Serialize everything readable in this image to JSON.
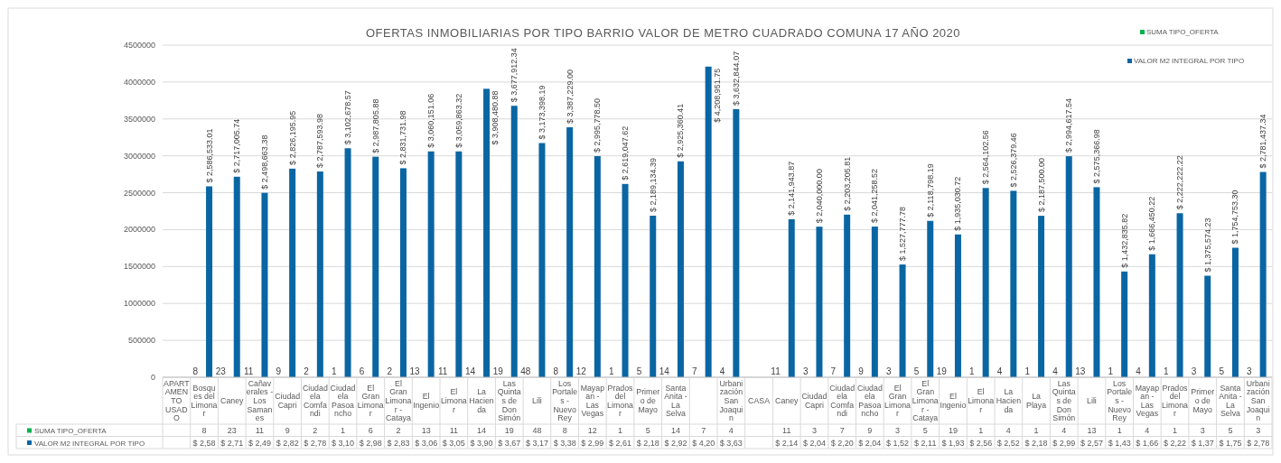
{
  "chart_data": {
    "type": "bar",
    "title": "OFERTAS INMOBILIARIAS  POR TIPO BARRIO VALOR DE METRO CUADRADO COMUNA 17 AÑO 2020",
    "categories": [
      "APARTAMENTO USADO",
      "Bosques del Limonar",
      "Caney",
      "Cañaverales - Los Samanes",
      "Ciudad Capri",
      "Ciudadela Comfandi",
      "Ciudadela Pasoancho",
      "El Gran Limonar",
      "El Gran Limonar - Cataya",
      "El Ingenio",
      "El Limonar",
      "La Hacienda",
      "Las Quintas de Don Simón",
      "Lili",
      "Los Portales - Nuevo Rey",
      "Mayapan - Las Vegas",
      "Prados del Limonar",
      "Primero de Mayo",
      "Santa Anita - La Selva",
      null,
      "Urbanización San Joaquin",
      "CASA",
      "Caney",
      "Ciudad Capri",
      "Ciudadela Comfandi",
      "Ciudadela Pasoancho",
      "El Gran Limonar",
      "El Gran Limonar - Cataya",
      "El Ingenio",
      "El Limonar",
      "La Hacienda",
      "La Playa",
      "Las Quintas de Don Simón",
      "Lili",
      "Los Portales - Nuevo Rey",
      "Mayapan - Las Vegas",
      "Prados del Limonar",
      "Primero de Mayo",
      "Santa Anita - La Selva",
      "Urbanización San Joaquin"
    ],
    "series": [
      {
        "name": "SUMA TIPO_OFERTA",
        "color": "#00b050",
        "values": [
          null,
          8,
          23,
          11,
          9,
          2,
          1,
          6,
          2,
          13,
          11,
          14,
          19,
          48,
          8,
          12,
          1,
          5,
          14,
          7,
          4,
          null,
          11,
          3,
          7,
          9,
          3,
          5,
          19,
          1,
          4,
          1,
          4,
          13,
          1,
          4,
          1,
          3,
          5,
          3
        ],
        "value_labels": [
          null,
          "8",
          "23",
          "11",
          "9",
          "2",
          "1",
          "6",
          "2",
          "13",
          "11",
          "14",
          "19",
          "48",
          "8",
          "12",
          "1",
          "5",
          "14",
          "7",
          "4",
          null,
          "11",
          "3",
          "7",
          "9",
          "3",
          "5",
          "19",
          "1",
          "4",
          "1",
          "4",
          "13",
          "1",
          "4",
          "1",
          "3",
          "5",
          "3"
        ]
      },
      {
        "name": "VALOR M2 INTEGRAL POR TIPO",
        "color": "#0a66a3",
        "values": [
          null,
          2586533.01,
          2717005.74,
          2498663.38,
          2826195.95,
          2787593.98,
          3102678.57,
          2987805.88,
          2831731.98,
          3060151.06,
          3059863.32,
          3908480.88,
          3677912.34,
          3173398.19,
          3387229.0,
          2995778.5,
          2619047.62,
          2189134.39,
          2925360.41,
          4208951.75,
          3632844.07,
          null,
          2141943.87,
          2040000.0,
          2203205.81,
          2041258.52,
          1527777.78,
          2118798.19,
          1935030.72,
          2564102.56,
          2526379.46,
          2187500.0,
          2994617.54,
          2575366.98,
          1432835.82,
          1666450.22,
          2222222.22,
          1375574.23,
          1754753.3,
          2781437.34
        ],
        "value_labels": [
          null,
          "$ 2,586,533.01",
          "$ 2,717,005.74",
          "$ 2,498,663.38",
          "$ 2,826,195.95",
          "$ 2,787,593.98",
          "$ 3,102,678.57",
          "$ 2,987,805.88",
          "$ 2,831,731.98",
          "$ 3,060,151.06",
          "$ 3,059,863.32",
          "$ 3,908,480.88",
          "$ 3,677,912.34",
          "$ 3,173,398.19",
          "$ 3,387,229.00",
          "$ 2,995,778.50",
          "$ 2,619,047.62",
          "$ 2,189,134.39",
          "$ 2,925,360.41",
          "$ 4,208,951.75",
          "$ 3,632,844.07",
          null,
          "$ 2,141,943.87",
          "$ 2,040,000.00",
          "$ 2,203,205.81",
          "$ 2,041,258.52",
          "$ 1,527,777.78",
          "$ 2,118,798.19",
          "$ 1,935,030.72",
          "$ 2,564,102.56",
          "$ 2,526,379.46",
          "$ 2,187,500.00",
          "$ 2,994,617.54",
          "$ 2,575,366.98",
          "$ 1,432,835.82",
          "$ 1,666,450.22",
          "$ 2,222,222.22",
          "$ 1,375,574.23",
          "$ 1,754,753.30",
          "$ 2,781,437.34"
        ]
      }
    ],
    "annotations": [
      "$ 2,58",
      "$ 2,71",
      "$ 2,49",
      "$ 2,82",
      "$ 2,78",
      "$ 3,10",
      "$ 2,98",
      "$ 2,83",
      "$ 3,06",
      "$ 3,05",
      "$ 3,90",
      "$ 3,67",
      "$ 3,17",
      "$ 3,38",
      "$ 2,99",
      "$ 2,61",
      "$ 2,18",
      "$ 2,92",
      "$ 4,20",
      "$ 3,63",
      "$ 2,14",
      "$ 2,04",
      "$ 2,20",
      "$ 2,04",
      "$ 1,52",
      "$ 2,11",
      "$ 1,93",
      "$ 2,56",
      "$ 2,52",
      "$ 2,18",
      "$ 2,99",
      "$ 2,57",
      "$ 1,43",
      "$ 1,66",
      "$ 2,22",
      "$ 1,37",
      "$ 1,75",
      "$ 2,78"
    ],
    "ylim": [
      0,
      4500000
    ],
    "yticks": [
      0,
      500000,
      1000000,
      1500000,
      2000000,
      2500000,
      3000000,
      3500000,
      4000000,
      4500000
    ],
    "grid": "y",
    "legend": "top right"
  }
}
